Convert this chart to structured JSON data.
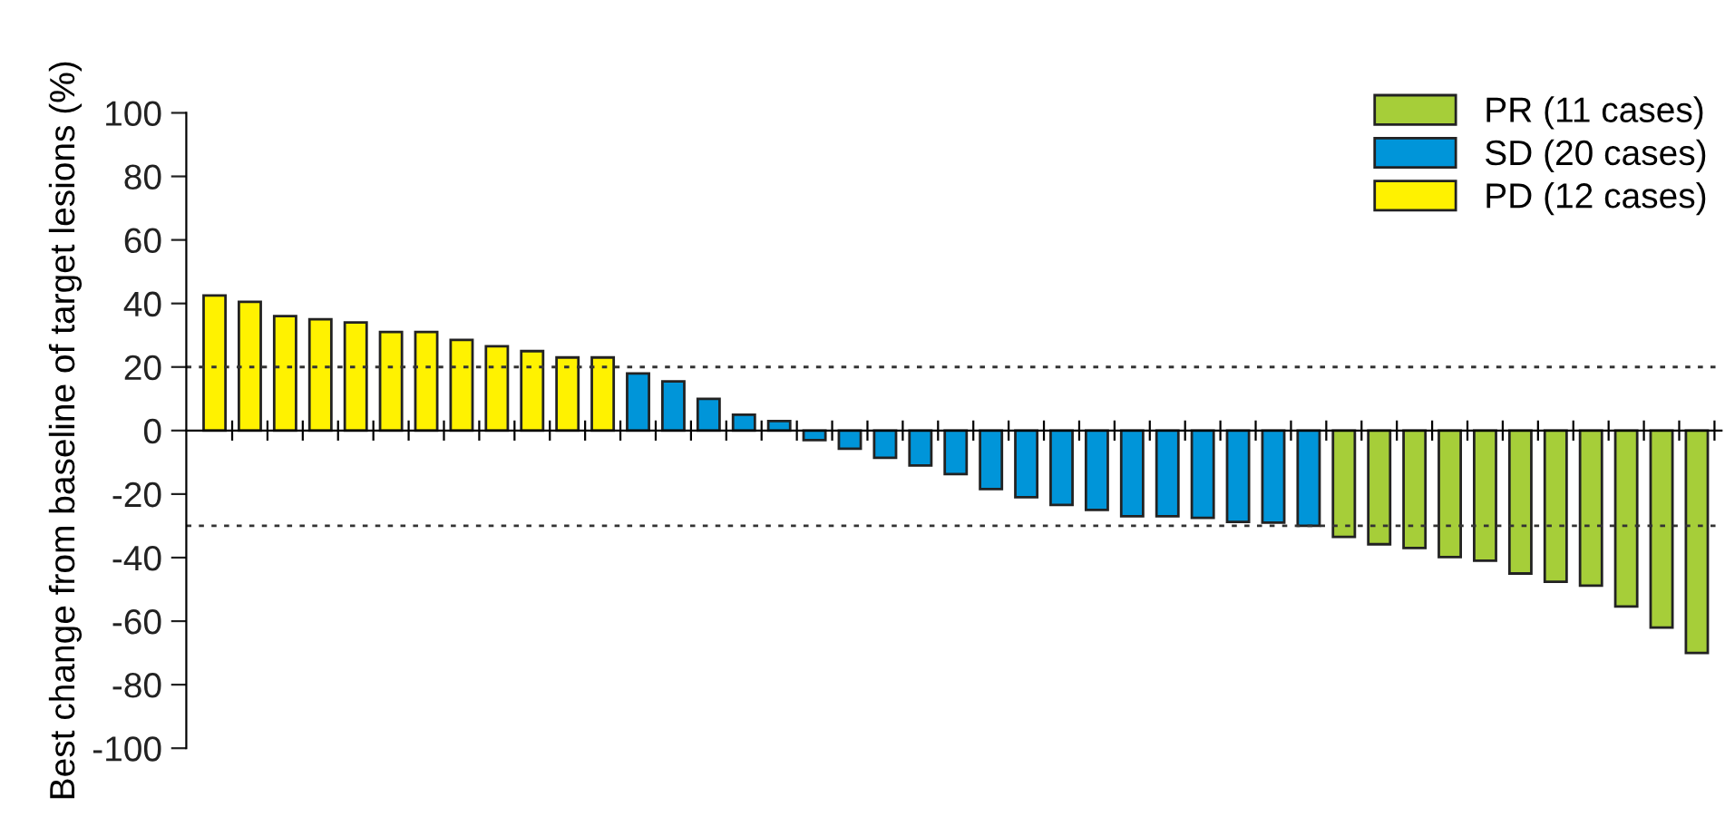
{
  "chart_data": {
    "type": "bar",
    "ylabel": "Best change from baseline of target lesions (%)",
    "categories": [
      null,
      null,
      null,
      null,
      null,
      null,
      null,
      null,
      null,
      null,
      null,
      null,
      null,
      null,
      null,
      null,
      null,
      null,
      null,
      null,
      null,
      null,
      null,
      null,
      null,
      null,
      null,
      null,
      null,
      null,
      null,
      null,
      null,
      null,
      null,
      null,
      null,
      null,
      null,
      null,
      null,
      null,
      null
    ],
    "series": [
      {
        "name": "PR (11 cases)",
        "color": "#a6ce39",
        "values": [
          null,
          null,
          null,
          null,
          null,
          null,
          null,
          null,
          null,
          null,
          null,
          null,
          null,
          null,
          null,
          null,
          null,
          null,
          null,
          null,
          null,
          null,
          null,
          null,
          null,
          null,
          null,
          null,
          null,
          null,
          null,
          null,
          -33.5,
          -35.8,
          -37,
          -39.8,
          -41,
          -45,
          -47.6,
          -48.8,
          -55.4,
          -62,
          -70
        ]
      },
      {
        "name": "SD (20 cases)",
        "color": "#0095d9",
        "values": [
          null,
          null,
          null,
          null,
          null,
          null,
          null,
          null,
          null,
          null,
          null,
          null,
          18,
          15.5,
          10,
          5,
          3,
          -3,
          -5.7,
          -8.6,
          -11,
          -13.7,
          -18.4,
          -21,
          -23.4,
          -25,
          -27,
          -27,
          -27.5,
          -28.8,
          -29,
          -30,
          null,
          null,
          null,
          null,
          null,
          null,
          null,
          null,
          null,
          null,
          null
        ]
      },
      {
        "name": "PD (12 cases)",
        "color": "#fff200",
        "values": [
          42.5,
          40.5,
          36,
          35,
          34,
          31,
          31,
          28.5,
          26.5,
          25,
          23,
          23,
          null,
          null,
          null,
          null,
          null,
          null,
          null,
          null,
          null,
          null,
          null,
          null,
          null,
          null,
          null,
          null,
          null,
          null,
          null,
          null,
          null,
          null,
          null,
          null,
          null,
          null,
          null,
          null,
          null,
          null,
          null
        ]
      }
    ],
    "ylim": [
      -100,
      100
    ],
    "yticks": [
      -100,
      -80,
      -60,
      -40,
      -20,
      0,
      20,
      40,
      60,
      80,
      100
    ],
    "ref_lines": [
      {
        "axis": "y",
        "value": 20,
        "line_style": "dotted",
        "color": "#333333"
      },
      {
        "axis": "y",
        "value": -30,
        "line_style": "dotted",
        "color": "#333333"
      }
    ],
    "grid": false,
    "legend": "top right",
    "tick_labels": "y"
  }
}
